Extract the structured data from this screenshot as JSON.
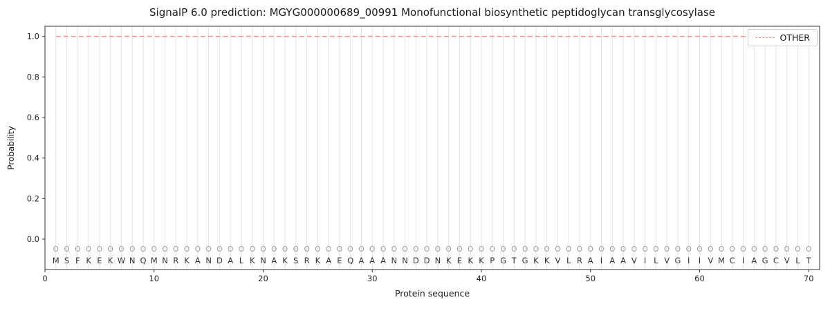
{
  "chart_data": {
    "type": "line",
    "title": "SignalP 6.0 prediction: MGYG000000689_00991 Monofunctional biosynthetic peptidoglycan transglycosylase",
    "xlabel": "Protein sequence",
    "ylabel": "Probability",
    "xlim": [
      0,
      71
    ],
    "ylim": [
      -0.15,
      1.05
    ],
    "xticks": [
      0,
      10,
      20,
      30,
      40,
      50,
      60,
      70
    ],
    "yticks": [
      0.0,
      0.2,
      0.4,
      0.6,
      0.8,
      1.0
    ],
    "grid": "vertical-per-residue",
    "legend_position": "upper right",
    "sequence": "MSFKEKWNQMNRKANDALKNAKSRKAEQAAANNDDNKEKKPGTGKKVLRAIAAVILVGIIVMCIAGCVLT",
    "per_position_marker": "O",
    "series": [
      {
        "name": "OTHER",
        "color": "#f78f8f",
        "style": "dashed",
        "x_start": 1,
        "values": [
          1.0,
          1.0,
          1.0,
          1.0,
          1.0,
          1.0,
          1.0,
          1.0,
          1.0,
          1.0,
          1.0,
          1.0,
          1.0,
          1.0,
          1.0,
          1.0,
          1.0,
          1.0,
          1.0,
          1.0,
          1.0,
          1.0,
          1.0,
          1.0,
          1.0,
          1.0,
          1.0,
          1.0,
          1.0,
          1.0,
          1.0,
          1.0,
          1.0,
          1.0,
          1.0,
          1.0,
          1.0,
          1.0,
          1.0,
          1.0,
          1.0,
          1.0,
          1.0,
          1.0,
          1.0,
          1.0,
          1.0,
          1.0,
          1.0,
          1.0,
          1.0,
          1.0,
          1.0,
          1.0,
          1.0,
          1.0,
          1.0,
          1.0,
          1.0,
          1.0,
          1.0,
          1.0,
          1.0,
          1.0,
          1.0,
          1.0,
          1.0,
          1.0,
          1.0,
          1.0
        ]
      }
    ],
    "colors": {
      "gridline": "#e3e3e3",
      "axes_edge": "#333333",
      "tick_text": "#262626",
      "sequence_text": "#333333",
      "marker_text": "#999999"
    }
  }
}
